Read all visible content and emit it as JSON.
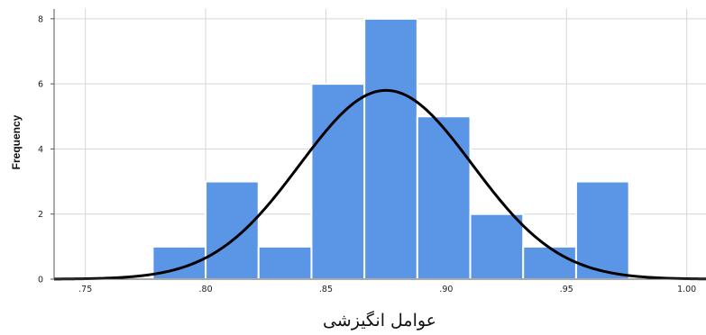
{
  "chart_data": {
    "type": "bar",
    "xlabel": "عوامل انگیزشی",
    "ylabel": "Frequency",
    "x_ticks": [
      {
        "value": 0.75,
        "label": ".75"
      },
      {
        "value": 0.8,
        "label": ".80"
      },
      {
        "value": 0.85,
        "label": ".85"
      },
      {
        "value": 0.9,
        "label": ".90"
      },
      {
        "value": 0.95,
        "label": ".95"
      },
      {
        "value": 1.0,
        "label": "1.00"
      }
    ],
    "y_ticks": [
      {
        "value": 0,
        "label": "0"
      },
      {
        "value": 2,
        "label": "2"
      },
      {
        "value": 4,
        "label": "4"
      },
      {
        "value": 6,
        "label": "6"
      },
      {
        "value": 8,
        "label": "8"
      }
    ],
    "xlim": [
      0.737,
      1.008
    ],
    "ylim": [
      0,
      8.3
    ],
    "grid": true,
    "bin_width": 0.022,
    "bins": [
      {
        "start": 0.778,
        "count": 1
      },
      {
        "start": 0.8,
        "count": 3
      },
      {
        "start": 0.822,
        "count": 1
      },
      {
        "start": 0.844,
        "count": 6
      },
      {
        "start": 0.866,
        "count": 8
      },
      {
        "start": 0.888,
        "count": 5
      },
      {
        "start": 0.91,
        "count": 2
      },
      {
        "start": 0.932,
        "count": 1
      },
      {
        "start": 0.954,
        "count": 3
      }
    ],
    "normal_curve": {
      "mean": 0.875,
      "std_dev": 0.0359,
      "peak": 5.8
    },
    "colors": {
      "bar": "#5b95e5",
      "bar_edge": "#ffffff",
      "curve": "#000000",
      "grid": "#d6d6d6",
      "axis": "#555555"
    }
  }
}
